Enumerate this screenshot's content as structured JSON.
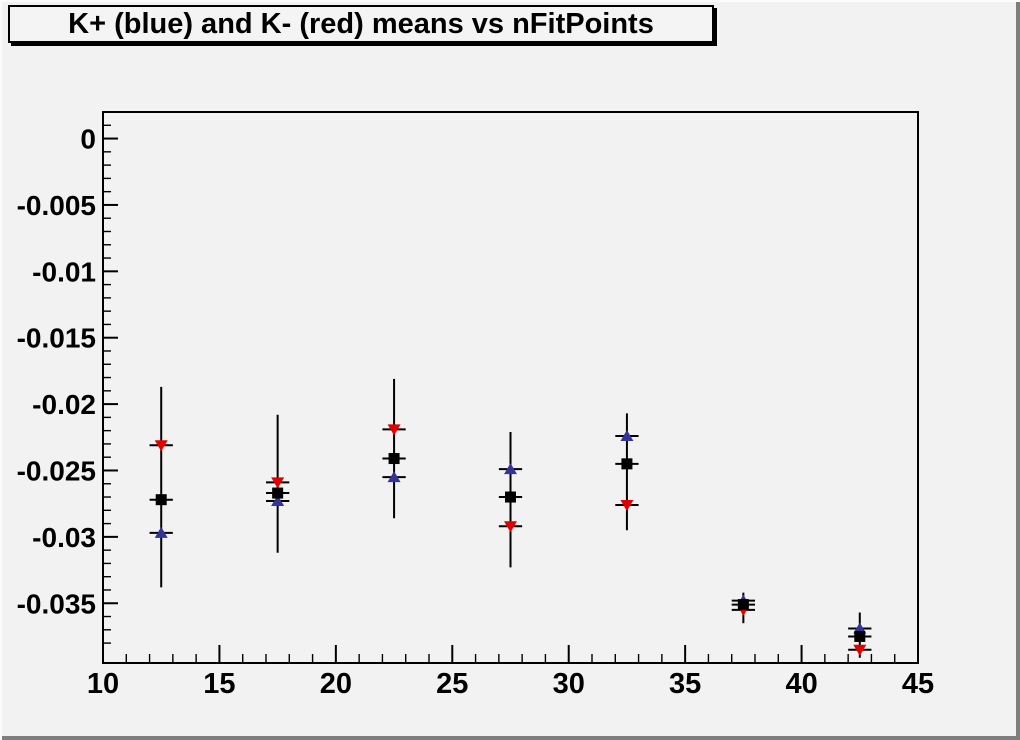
{
  "title": "K+ (blue) and K- (red) means vs nFitPoints",
  "colors": {
    "canvas_bg": "#f2f2f2",
    "bevel_light": "#fbfbfb",
    "bevel_dark": "#7e7e7e",
    "axis_line": "#000000",
    "kplus_blue": "#333399",
    "kminus_red": "#e50000",
    "mean_black": "#000000"
  },
  "chart_data": {
    "type": "scatter",
    "title": "K+ (blue) and K- (red) means vs nFitPoints",
    "xlabel": "",
    "ylabel": "",
    "xlim": [
      10,
      45
    ],
    "ylim": [
      -0.0395,
      0.002
    ],
    "grid": false,
    "legend_position": "none",
    "x_minor_step": 1,
    "y_minor_step": 0.001,
    "x_tick_labels": [
      {
        "v": 10,
        "label": "10"
      },
      {
        "v": 15,
        "label": "15"
      },
      {
        "v": 20,
        "label": "20"
      },
      {
        "v": 25,
        "label": "25"
      },
      {
        "v": 30,
        "label": "30"
      },
      {
        "v": 35,
        "label": "35"
      },
      {
        "v": 40,
        "label": "40"
      },
      {
        "v": 45,
        "label": "45"
      }
    ],
    "y_tick_labels": [
      {
        "v": 0,
        "label": "0"
      },
      {
        "v": -0.005,
        "label": "-0.005"
      },
      {
        "v": -0.01,
        "label": "-0.01"
      },
      {
        "v": -0.015,
        "label": "-0.015"
      },
      {
        "v": -0.02,
        "label": "-0.02"
      },
      {
        "v": -0.025,
        "label": "-0.025"
      },
      {
        "v": -0.03,
        "label": "-0.03"
      },
      {
        "v": -0.035,
        "label": "-0.035"
      }
    ],
    "x_error_half_width": 0.5,
    "series": [
      {
        "name": "K+ (blue)",
        "marker": "triangle-up",
        "color": "#333399",
        "points": [
          {
            "x": 12.5,
            "y": -0.0297
          },
          {
            "x": 17.5,
            "y": -0.0273
          },
          {
            "x": 22.5,
            "y": -0.0255
          },
          {
            "x": 27.5,
            "y": -0.0249
          },
          {
            "x": 32.5,
            "y": -0.0224
          },
          {
            "x": 37.5,
            "y": -0.0348
          },
          {
            "x": 42.5,
            "y": -0.0369
          }
        ]
      },
      {
        "name": "K- (red)",
        "marker": "triangle-down",
        "color": "#e50000",
        "points": [
          {
            "x": 12.5,
            "y": -0.0231
          },
          {
            "x": 17.5,
            "y": -0.0259
          },
          {
            "x": 22.5,
            "y": -0.0219
          },
          {
            "x": 27.5,
            "y": -0.0292
          },
          {
            "x": 32.5,
            "y": -0.0276
          },
          {
            "x": 37.5,
            "y": -0.0355
          },
          {
            "x": 42.5,
            "y": -0.0385
          }
        ]
      },
      {
        "name": "black squares",
        "marker": "square",
        "color": "#000000",
        "points": [
          {
            "x": 12.5,
            "y": -0.0272
          },
          {
            "x": 17.5,
            "y": -0.0267
          },
          {
            "x": 22.5,
            "y": -0.0241
          },
          {
            "x": 27.5,
            "y": -0.027
          },
          {
            "x": 32.5,
            "y": -0.0245
          },
          {
            "x": 37.5,
            "y": -0.0351
          },
          {
            "x": 42.5,
            "y": -0.0375
          }
        ]
      }
    ],
    "error_bars": [
      {
        "x": 12.5,
        "lo": -0.0338,
        "hi": -0.0187
      },
      {
        "x": 17.5,
        "lo": -0.0312,
        "hi": -0.0208
      },
      {
        "x": 22.5,
        "lo": -0.0286,
        "hi": -0.0181
      },
      {
        "x": 27.5,
        "lo": -0.0323,
        "hi": -0.0221
      },
      {
        "x": 32.5,
        "lo": -0.0295,
        "hi": -0.0207
      },
      {
        "x": 37.5,
        "lo": -0.0365,
        "hi": -0.0342
      },
      {
        "x": 42.5,
        "lo": -0.0391,
        "hi": -0.0357
      }
    ]
  }
}
